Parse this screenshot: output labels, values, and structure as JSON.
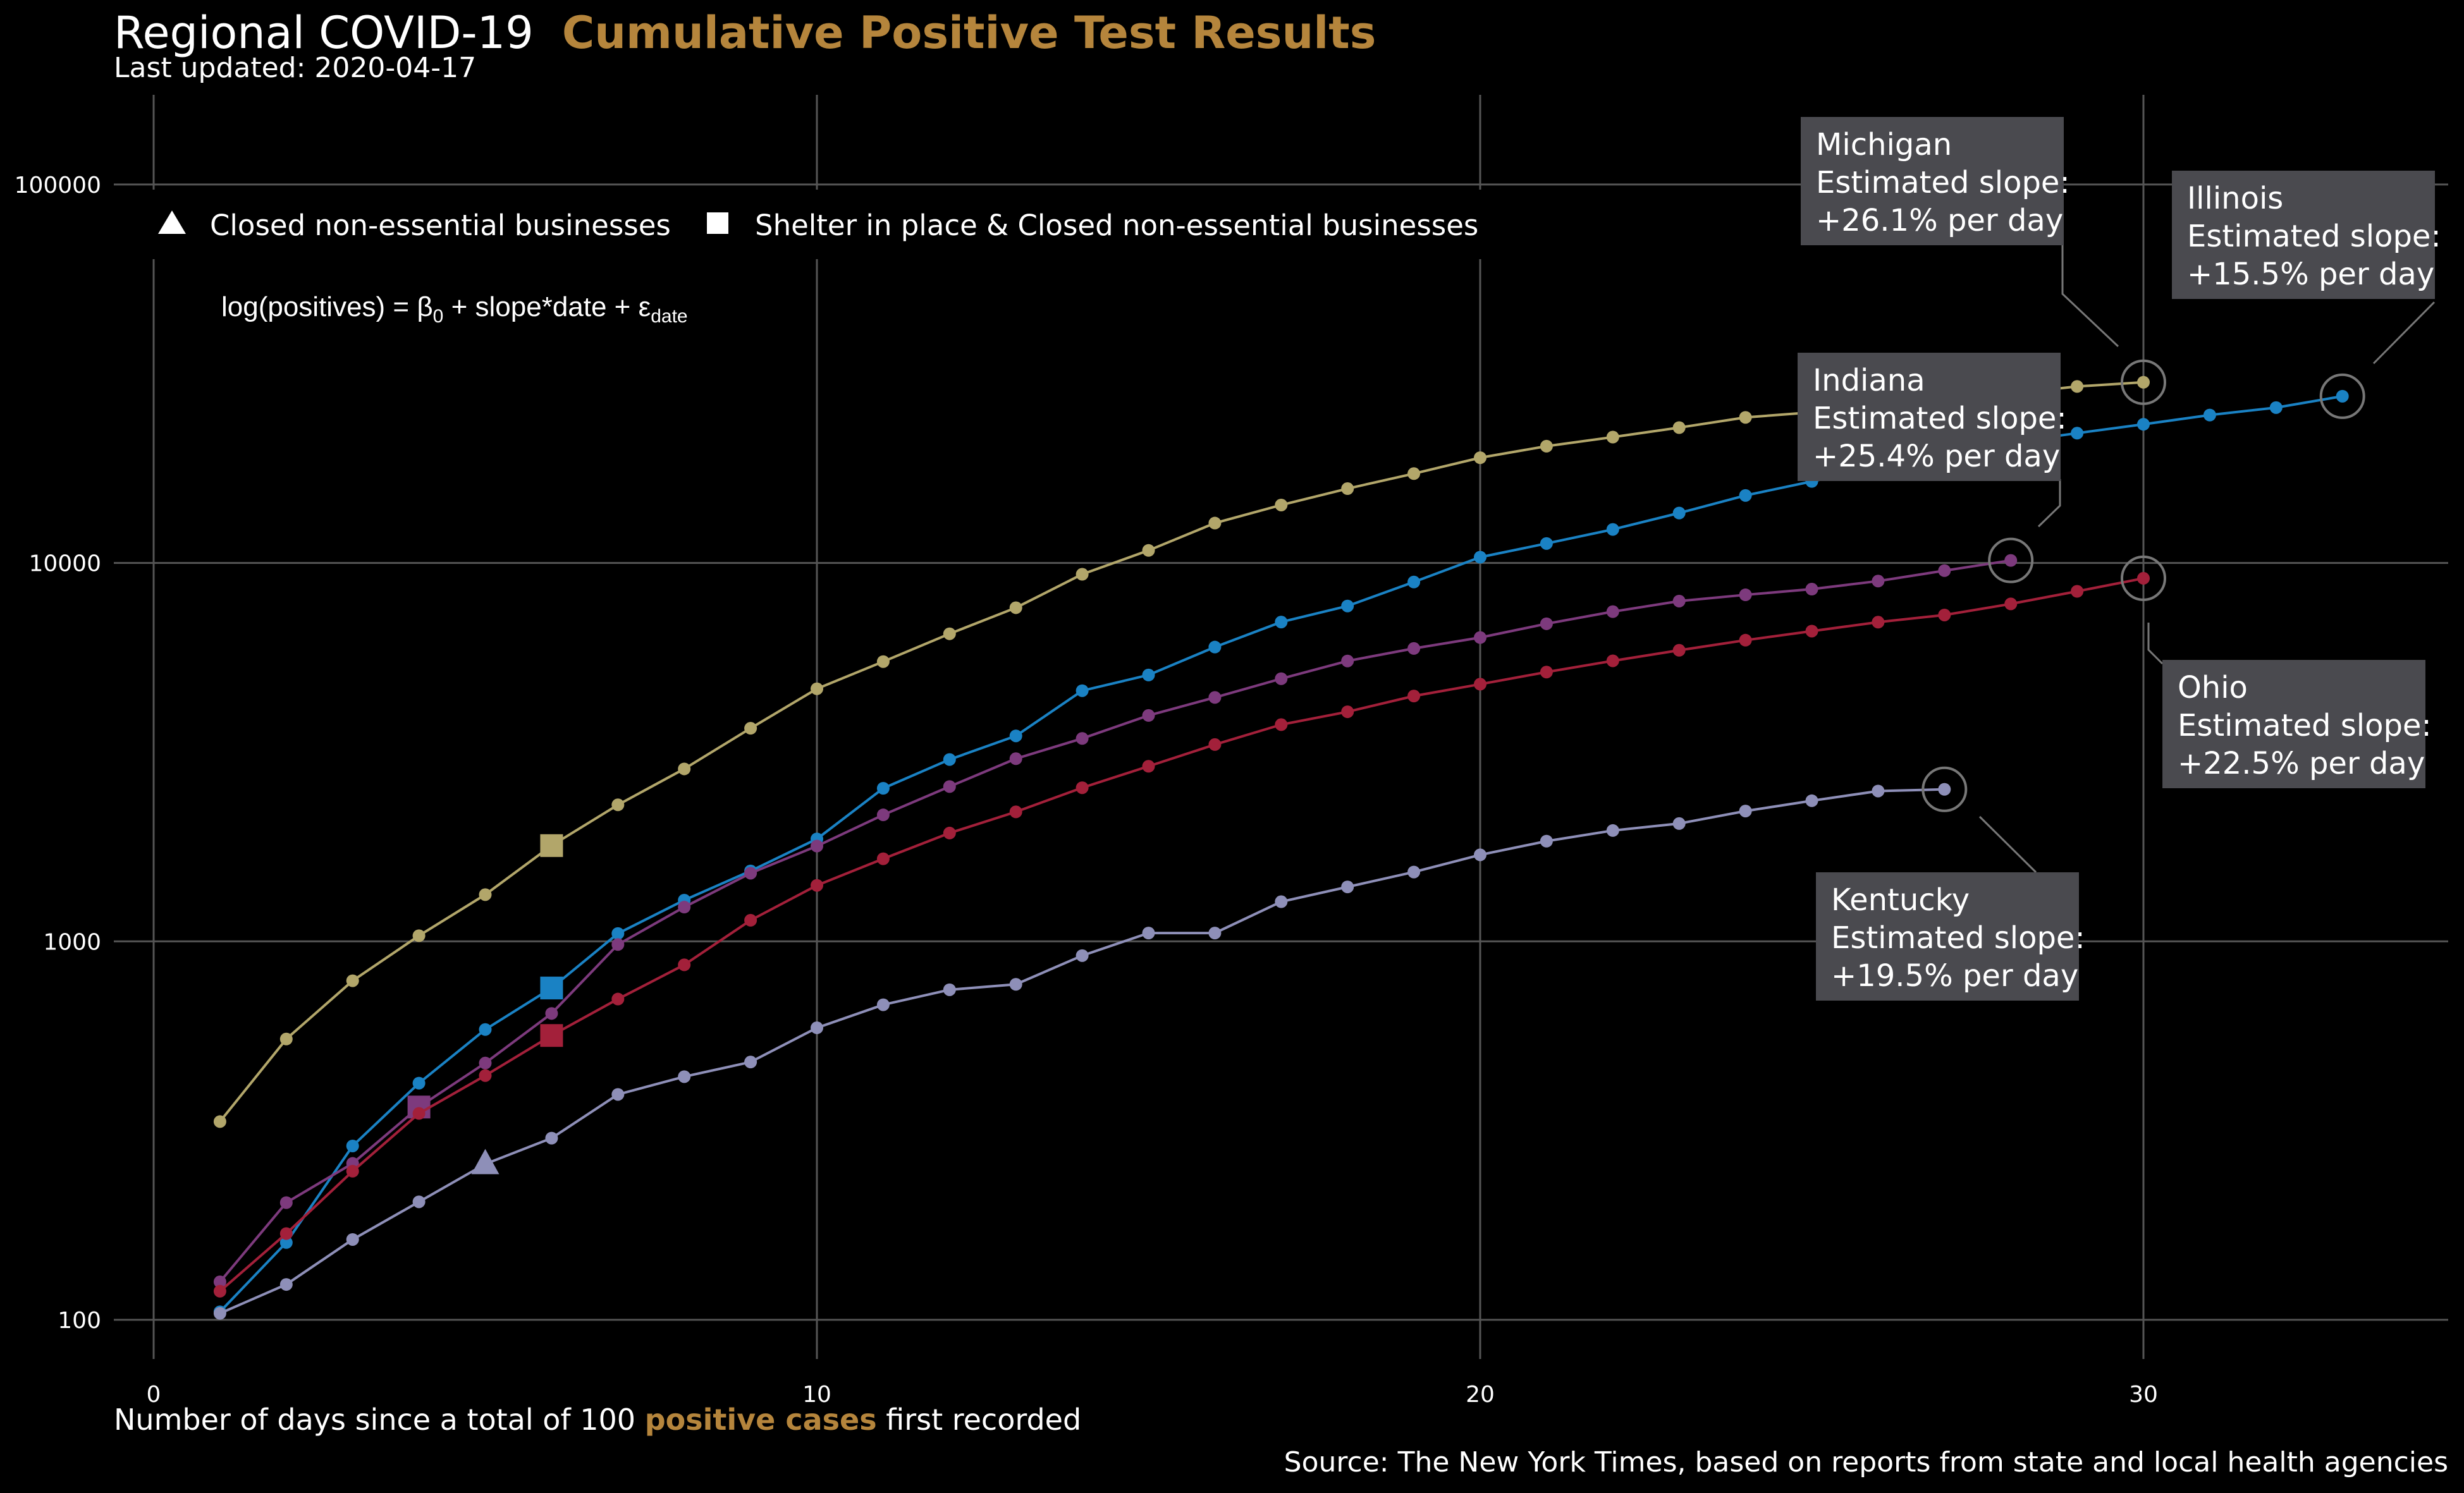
{
  "title": {
    "main": "Regional COVID-19",
    "accent": "Cumulative Positive Test Results"
  },
  "subtitle": "Last updated: 2020-04-17",
  "legend": {
    "triangle_label": "Closed non-essential businesses",
    "square_label": "Shelter in place & Closed non-essential businesses"
  },
  "formula": {
    "lhs": "log(positives) = β",
    "sub0": "0",
    "mid": " + slope*date + ε",
    "subdate": "date"
  },
  "xlabel": {
    "before": "Number of days since a total of 100 ",
    "accent": "positive cases",
    "after": " first recorded"
  },
  "source": "Source: The New York Times, based on reports from state and local health agencies",
  "colors": {
    "background": "#000000",
    "grid": "#555555",
    "accent": "#b5853c",
    "callout_bg": "#4a4a4f"
  },
  "chart_data": {
    "type": "line",
    "x_ticks": [
      0,
      10,
      20,
      30
    ],
    "y_ticks": [
      100,
      1000,
      10000,
      100000
    ],
    "y_tick_labels": [
      "100",
      "1000",
      "10000",
      "100000"
    ],
    "y_scale": "log",
    "xlim": [
      -0.5,
      34.5
    ],
    "ylim": [
      75,
      170000
    ],
    "grid": true,
    "legend_position": "top-left",
    "series": [
      {
        "name": "Michigan",
        "color": "#b2a66a",
        "x": [
          1,
          2,
          3,
          4,
          5,
          6,
          7,
          8,
          9,
          10,
          11,
          12,
          13,
          14,
          15,
          16,
          17,
          18,
          19,
          20,
          21,
          22,
          23,
          24,
          25,
          26,
          27,
          28,
          29,
          30
        ],
        "values": [
          334,
          552,
          787,
          1035,
          1329,
          1791,
          2295,
          2856,
          3657,
          4650,
          5486,
          6498,
          7615,
          9334,
          10791,
          12744,
          14225,
          15718,
          17221,
          18970,
          20346,
          21504,
          22783,
          24244,
          25000,
          26000,
          27000,
          28000,
          29263,
          30023
        ],
        "square_day": 6,
        "callout": {
          "name": "Michigan",
          "label": "Estimated slope:",
          "slope": "+26.1% per day"
        }
      },
      {
        "name": "Illinois",
        "color": "#1a82c4",
        "x": [
          1,
          2,
          3,
          4,
          5,
          6,
          7,
          8,
          9,
          10,
          11,
          12,
          13,
          14,
          15,
          16,
          17,
          18,
          19,
          20,
          21,
          22,
          23,
          24,
          25,
          26,
          27,
          28,
          29,
          30,
          31,
          32,
          33
        ],
        "values": [
          105,
          160,
          288,
          422,
          585,
          753,
          1049,
          1285,
          1535,
          1865,
          2538,
          3024,
          3491,
          4596,
          5057,
          5994,
          6980,
          7695,
          8904,
          10357,
          11256,
          12262,
          13549,
          15078,
          16422,
          17887,
          19180,
          20852,
          22025,
          23247,
          24593,
          25733,
          27575
        ],
        "square_day": 6,
        "callout": {
          "name": "Illinois",
          "label": "Estimated slope:",
          "slope": "+15.5% per day"
        }
      },
      {
        "name": "Indiana",
        "color": "#7d3a7d",
        "x": [
          1,
          2,
          3,
          4,
          5,
          6,
          7,
          8,
          9,
          10,
          11,
          12,
          13,
          14,
          15,
          16,
          17,
          18,
          19,
          20,
          21,
          22,
          23,
          24,
          25,
          26,
          27,
          28
        ],
        "values": [
          126,
          204,
          259,
          365,
          477,
          645,
          981,
          1232,
          1514,
          1786,
          2159,
          2565,
          3039,
          3437,
          3953,
          4411,
          4944,
          5507,
          5943,
          6351,
          6907,
          7435,
          7928,
          8236,
          8527,
          8955,
          9542,
          10154
        ],
        "square_day": 4,
        "callout": {
          "name": "Indiana",
          "label": "Estimated slope:",
          "slope": "+25.4% per day"
        }
      },
      {
        "name": "Ohio",
        "color": "#a3203a",
        "x": [
          1,
          2,
          3,
          4,
          5,
          6,
          7,
          8,
          9,
          10,
          11,
          12,
          13,
          14,
          15,
          16,
          17,
          18,
          19,
          20,
          21,
          22,
          23,
          24,
          25,
          26,
          27,
          28,
          29,
          30
        ],
        "values": [
          119,
          169,
          247,
          351,
          442,
          564,
          704,
          867,
          1137,
          1406,
          1653,
          1933,
          2199,
          2547,
          2902,
          3312,
          3739,
          4043,
          4450,
          4782,
          5148,
          5512,
          5878,
          6250,
          6604,
          6975,
          7285,
          7794,
          8414,
          9107
        ],
        "square_day": 6,
        "callout": {
          "name": "Ohio",
          "label": "Estimated slope:",
          "slope": "+22.5% per day"
        }
      },
      {
        "name": "Kentucky",
        "color": "#8e8fb8",
        "x": [
          1,
          2,
          3,
          4,
          5,
          6,
          7,
          8,
          9,
          10,
          11,
          12,
          13,
          14,
          15,
          16,
          17,
          18,
          19,
          20,
          21,
          22,
          23,
          24,
          25,
          26,
          27
        ],
        "values": [
          104,
          124,
          163,
          205,
          258,
          302,
          394,
          439,
          480,
          591,
          680,
          745,
          770,
          917,
          1052,
          1052,
          1273,
          1393,
          1525,
          1693,
          1840,
          1963,
          2048,
          2210,
          2353,
          2496,
          2522
        ],
        "triangle_day": 5,
        "callout": {
          "name": "Kentucky",
          "label": "Estimated slope:",
          "slope": "+19.5% per day"
        }
      }
    ]
  }
}
